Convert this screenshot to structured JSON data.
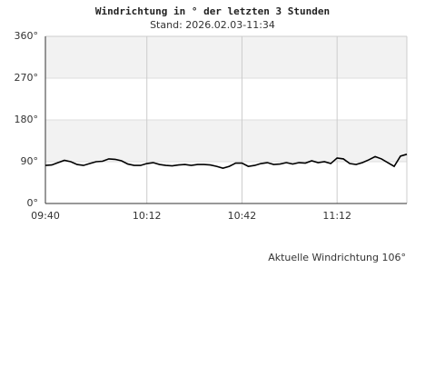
{
  "chart_data": {
    "type": "line",
    "title": "Windrichtung in ° der letzten 3 Stunden",
    "subtitle": "Stand: 2026.02.03-11:34",
    "footer": "Aktuelle Windrichtung 106°",
    "x": [
      580,
      582,
      584,
      586,
      588,
      590,
      592,
      594,
      596,
      598,
      600,
      602,
      604,
      606,
      608,
      610,
      612,
      614,
      616,
      618,
      620,
      622,
      624,
      626,
      628,
      630,
      632,
      634,
      636,
      638,
      640,
      642,
      644,
      646,
      648,
      650,
      652,
      654,
      656,
      658,
      660,
      662,
      664,
      666,
      668,
      670,
      672,
      674,
      676,
      678,
      680,
      682,
      684,
      686,
      688,
      690,
      692,
      694
    ],
    "series": [
      {
        "color": "#000000",
        "values": [
          82,
          83,
          88,
          93,
          90,
          84,
          82,
          86,
          90,
          91,
          96,
          95,
          92,
          85,
          82,
          82,
          86,
          88,
          84,
          82,
          81,
          83,
          84,
          82,
          84,
          84,
          83,
          80,
          76,
          80,
          87,
          87,
          80,
          82,
          86,
          88,
          84,
          85,
          88,
          85,
          88,
          87,
          92,
          88,
          90,
          86,
          98,
          96,
          86,
          84,
          88,
          94,
          101,
          96,
          88,
          80,
          102,
          106
        ]
      }
    ],
    "xlim": [
      580,
      694
    ],
    "xticks": [
      {
        "value": 580,
        "label": "09:40"
      },
      {
        "value": 612,
        "label": "10:12"
      },
      {
        "value": 642,
        "label": "10:42"
      },
      {
        "value": 672,
        "label": "11:12"
      }
    ],
    "ylim": [
      0,
      360
    ],
    "yticks": [
      {
        "value": 0,
        "label": "0°"
      },
      {
        "value": 90,
        "label": "90°"
      },
      {
        "value": 180,
        "label": "180°"
      },
      {
        "value": 270,
        "label": "270°"
      },
      {
        "value": 360,
        "label": "360°"
      }
    ],
    "grid": true
  }
}
